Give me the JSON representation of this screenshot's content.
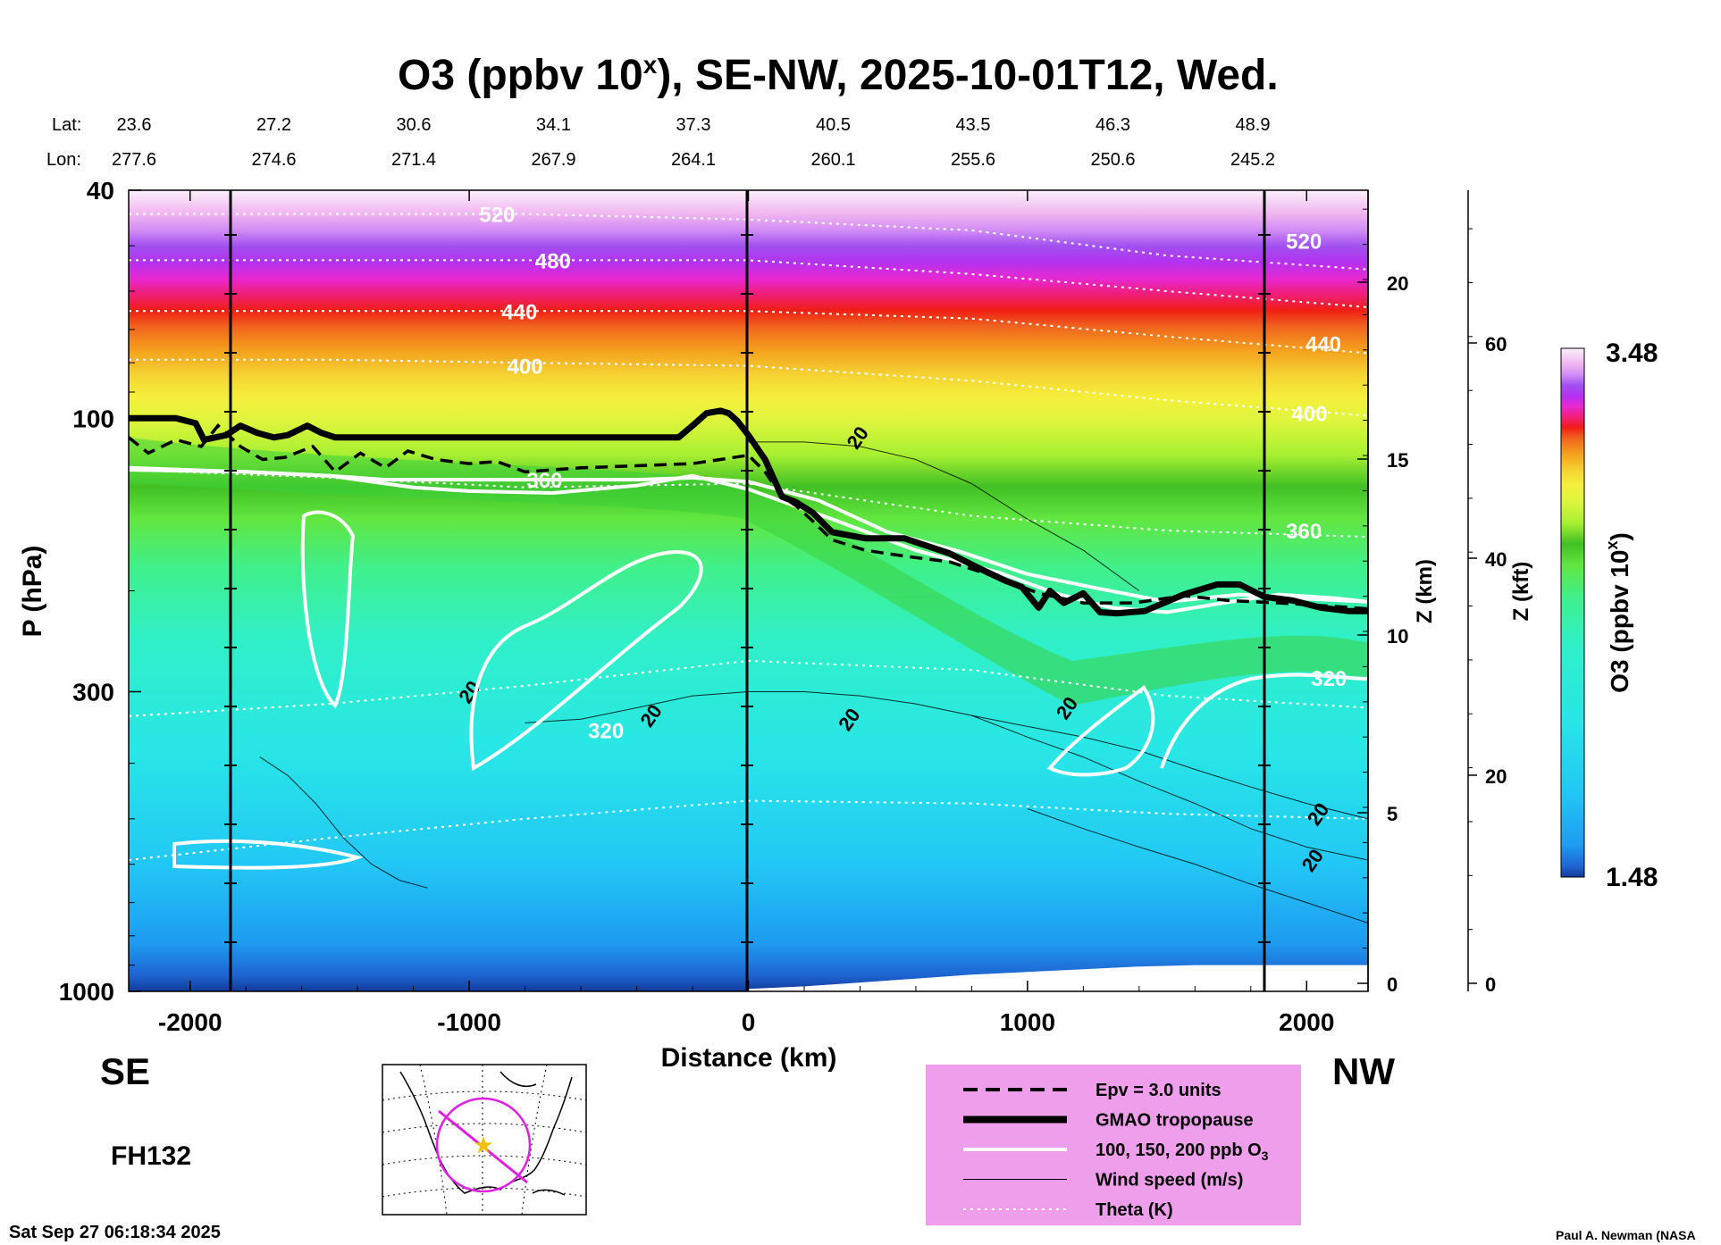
{
  "chart_data": {
    "type": "heatmap",
    "title_main": "O3 (ppbv 10",
    "title_sup": "x",
    "title_rest": "), SE-NW, 2025-10-01T12, Wed.",
    "lat_label": "Lat:",
    "lon_label": "Lon:",
    "lat_values": [
      "23.6",
      "27.2",
      "30.6",
      "34.1",
      "37.3",
      "40.5",
      "43.5",
      "46.3",
      "48.9"
    ],
    "lon_values": [
      "277.6",
      "274.6",
      "271.4",
      "267.9",
      "264.1",
      "260.1",
      "255.6",
      "250.6",
      "245.2"
    ],
    "xlabel": "Distance (km)",
    "xlim": [
      -2220,
      2220
    ],
    "x_ticks": [
      -2000,
      -1000,
      0,
      1000,
      2000
    ],
    "ylabel": "P (hPa)",
    "ylim": [
      1000,
      40
    ],
    "y_ticks": [
      40,
      100,
      300,
      1000
    ],
    "z_km_label": "Z (km)",
    "z_km_ticks": [
      "0",
      "5",
      "10",
      "15",
      "20"
    ],
    "z_kft_label": "Z (kft)",
    "z_kft_ticks": [
      "0",
      "20",
      "40",
      "60"
    ],
    "colorbar_label_main": "O3 (ppbv 10",
    "colorbar_label_sup": "x",
    "colorbar_label_rest": ")",
    "colorbar_min": "1.48",
    "colorbar_max": "3.48",
    "colorbar_colors": [
      "#0a1a6e",
      "#123a9a",
      "#1e64d2",
      "#1e9bf0",
      "#22c8f5",
      "#28e6e6",
      "#30f0c8",
      "#40f08a",
      "#62e640",
      "#41c024",
      "#a8f032",
      "#dcf53c",
      "#f5f03c",
      "#f5d232",
      "#f5a01e",
      "#f0641e",
      "#f01e14",
      "#f01e78",
      "#e628d2",
      "#b432f0",
      "#a050f0",
      "#d28cf5",
      "#f0b4f0",
      "#f8dcf5",
      "#fcf0fc"
    ],
    "theta_labels": [
      "520",
      "480",
      "440",
      "400",
      "360",
      "320"
    ],
    "theta_labels_right": [
      "520",
      "440",
      "400",
      "360",
      "320"
    ],
    "wind_labels": [
      "20"
    ],
    "left_region": "SE",
    "right_region": "NW",
    "forecast_hour": "FH132",
    "timestamp": "Sat Sep 27 06:18:34 2025",
    "credit": "Paul A. Newman (NASA",
    "legend": {
      "background": "#ee9eea",
      "items": [
        {
          "label": "Epv = 3.0 units",
          "style": "dashed"
        },
        {
          "label": "GMAO tropopause",
          "style": "thick"
        },
        {
          "label": "100, 150, 200 ppb O",
          "sub": "3",
          "style": "white"
        },
        {
          "label": "Wind speed (m/s)",
          "style": "thin"
        },
        {
          "label": "Theta (K)",
          "style": "dotted"
        }
      ]
    },
    "tropopause": {
      "x": [
        -2220,
        -2050,
        -1980,
        -1950,
        -1870,
        -1820,
        -1760,
        -1700,
        -1650,
        -1580,
        -1530,
        -1480,
        -1380,
        -1000,
        -600,
        -250,
        -200,
        -150,
        -100,
        -70,
        -40,
        0,
        60,
        120,
        170,
        230,
        300,
        420,
        560,
        640,
        720,
        800,
        860,
        920,
        980,
        1040,
        1080,
        1130,
        1200,
        1260,
        1320,
        1420,
        1560,
        1680,
        1760,
        1850,
        1950,
        2050,
        2150,
        2220
      ],
      "p": [
        100,
        100,
        102,
        109,
        107,
        103,
        106,
        108,
        107,
        103,
        106,
        108,
        108,
        108,
        108,
        108,
        103,
        98,
        97,
        98,
        101,
        107,
        118,
        137,
        140,
        146,
        158,
        162,
        162,
        167,
        172,
        180,
        186,
        192,
        197,
        214,
        200,
        210,
        202,
        218,
        219,
        217,
        203,
        195,
        195,
        205,
        208,
        214,
        217,
        217
      ]
    },
    "epv": {
      "x": [
        -2220,
        -2150,
        -2050,
        -1960,
        -1900,
        -1820,
        -1740,
        -1660,
        -1560,
        -1480,
        -1390,
        -1300,
        -1220,
        -1120,
        -1000,
        -900,
        -800,
        -600,
        -400,
        -200,
        -100,
        0,
        60,
        120,
        170,
        230,
        300,
        420,
        560,
        720,
        900,
        1040,
        1200,
        1380,
        1560,
        1720,
        1900,
        2100,
        2220
      ],
      "p": [
        108,
        115,
        109,
        112,
        103,
        112,
        118,
        117,
        112,
        124,
        115,
        122,
        114,
        118,
        120,
        119,
        124,
        122,
        121,
        120,
        118,
        116,
        124,
        137,
        142,
        151,
        163,
        170,
        174,
        178,
        190,
        202,
        210,
        210,
        204,
        208,
        210,
        213,
        215
      ]
    },
    "ozone_contours": [
      {
        "x": [
          -2220,
          -1800,
          -1500,
          -1300,
          -1000,
          -700,
          -400,
          -200,
          0,
          250,
          500,
          760,
          1000,
          1250,
          1500,
          1760,
          1960,
          2220
        ],
        "p": [
          123,
          124,
          126,
          128,
          128,
          128,
          128,
          127,
          129,
          139,
          158,
          171,
          187,
          198,
          209,
          203,
          206,
          209
        ]
      },
      {
        "x": [
          -2220,
          -1800,
          -1500,
          -1400,
          -1200,
          -1000,
          -700,
          -400,
          -200,
          0,
          300,
          600,
          900,
          1100,
          1300,
          1500,
          1700,
          1900,
          2100,
          2220
        ],
        "p": [
          122,
          124,
          126,
          128,
          132,
          134,
          135,
          131,
          126,
          133,
          150,
          170,
          186,
          202,
          214,
          218,
          210,
          203,
          206,
          209
        ]
      }
    ],
    "theta_lines": [
      {
        "label": "520",
        "x": [
          -2220,
          -1500,
          -800,
          0,
          800,
          1500,
          2220
        ],
        "p": [
          44,
          44,
          44,
          45,
          47,
          52,
          55
        ]
      },
      {
        "label": "480",
        "x": [
          -2220,
          -1500,
          -800,
          0,
          800,
          1500,
          2220
        ],
        "p": [
          53,
          53,
          53,
          53,
          56,
          60,
          64
        ]
      },
      {
        "label": "440",
        "x": [
          -2220,
          -1500,
          -800,
          0,
          800,
          1500,
          2220
        ],
        "p": [
          65,
          65,
          65,
          65,
          67,
          72,
          77
        ]
      },
      {
        "label": "400",
        "x": [
          -2220,
          -1500,
          -800,
          0,
          800,
          1500,
          2220
        ],
        "p": [
          79,
          79,
          80,
          81,
          86,
          93,
          99
        ]
      },
      {
        "label": "360",
        "x": [
          -2220,
          -1500,
          -800,
          0,
          800,
          1500,
          2220
        ],
        "p": [
          123,
          127,
          132,
          130,
          148,
          157,
          161
        ]
      },
      {
        "label": "320",
        "x": [
          -2220,
          -1500,
          -800,
          0,
          800,
          1500,
          2220
        ],
        "p": [
          331,
          315,
          293,
          265,
          275,
          305,
          320
        ]
      },
      {
        "label": "",
        "x": [
          -2220,
          -1500,
          -800,
          0,
          800,
          1500,
          2220
        ],
        "p": [
          590,
          540,
          500,
          465,
          470,
          490,
          500
        ]
      }
    ],
    "terrain": {
      "x": [
        0,
        200,
        400,
        600,
        800,
        1000,
        1200,
        1400,
        1600,
        1800,
        2000,
        2220
      ],
      "p": [
        990,
        980,
        965,
        950,
        935,
        925,
        915,
        905,
        900,
        900,
        900,
        900
      ]
    },
    "wind_contours": [
      {
        "x": [
          -1750,
          -1650,
          -1550,
          -1450,
          -1350,
          -1250,
          -1150
        ],
        "p": [
          390,
          420,
          470,
          540,
          600,
          640,
          660
        ]
      },
      {
        "x": [
          -800,
          -600,
          -400,
          -200,
          0,
          200,
          400,
          600,
          800,
          1000,
          1200,
          1400,
          1600,
          1800,
          2000,
          2220
        ],
        "p": [
          340,
          335,
          320,
          305,
          300,
          300,
          305,
          315,
          330,
          345,
          360,
          380,
          410,
          440,
          470,
          500
        ]
      },
      {
        "x": [
          0,
          200,
          400,
          600,
          800,
          1000,
          1200,
          1400
        ],
        "p": [
          110,
          110,
          112,
          118,
          130,
          150,
          170,
          200
        ]
      },
      {
        "x": [
          800,
          1000,
          1200,
          1400,
          1600,
          1800,
          2000,
          2220
        ],
        "p": [
          330,
          360,
          390,
          430,
          470,
          520,
          560,
          590
        ]
      },
      {
        "x": [
          1000,
          1200,
          1400,
          1600,
          1800,
          2000,
          2220
        ],
        "p": [
          480,
          520,
          560,
          600,
          650,
          700,
          760
        ]
      }
    ]
  }
}
